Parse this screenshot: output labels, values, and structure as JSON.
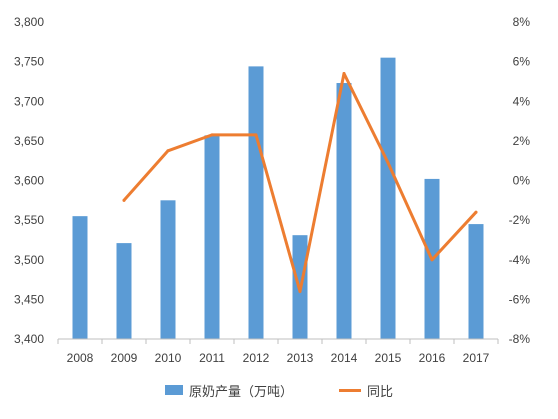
{
  "chart_data": {
    "type": "bar+line",
    "categories": [
      "2008",
      "2009",
      "2010",
      "2011",
      "2012",
      "2013",
      "2014",
      "2015",
      "2016",
      "2017"
    ],
    "series": [
      {
        "name": "原奶产量（万吨）",
        "type": "bar",
        "axis": "left",
        "color": "#5B9BD5",
        "values": [
          3555,
          3521,
          3575,
          3657,
          3744,
          3531,
          3723,
          3755,
          3602,
          3545
        ]
      },
      {
        "name": "同比",
        "type": "line",
        "axis": "right",
        "color": "#ED7D31",
        "values": [
          null,
          -1.0,
          1.5,
          2.3,
          2.3,
          -5.6,
          5.4,
          0.9,
          -4.0,
          -1.6
        ]
      }
    ],
    "y_left": {
      "min": 3400,
      "max": 3800,
      "step": 50,
      "ticks": [
        "3,400",
        "3,450",
        "3,500",
        "3,550",
        "3,600",
        "3,650",
        "3,700",
        "3,750",
        "3,800"
      ]
    },
    "y_right": {
      "min": -8,
      "max": 8,
      "step": 2,
      "ticks": [
        "-8%",
        "-6%",
        "-4%",
        "-2%",
        "0%",
        "2%",
        "4%",
        "6%",
        "8%"
      ]
    },
    "grid": false,
    "legend_position": "bottom",
    "title": "",
    "xlabel": "",
    "ylabel": ""
  },
  "legend": {
    "bar_label": "原奶产量（万吨）",
    "line_label": "同比"
  }
}
